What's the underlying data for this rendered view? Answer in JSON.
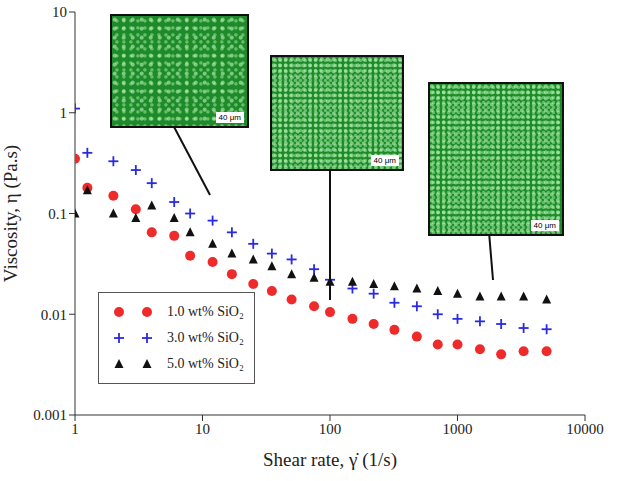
{
  "chart_data": {
    "type": "scatter",
    "x_label": "Shear rate, γ̇  (1/s)",
    "y_label": "Viscosity, η (Pa.s)",
    "log": true,
    "grid": false,
    "legend": "lower left",
    "xlim": [
      1,
      10000
    ],
    "xticks": [
      1,
      10,
      100,
      1000,
      10000
    ],
    "ylim": [
      0.001,
      10
    ],
    "yticks": [
      0.001,
      0.01,
      0.1,
      1,
      10
    ],
    "x": [
      1,
      1.25,
      2,
      3,
      4,
      6,
      8,
      12,
      17,
      25,
      35,
      50,
      75,
      100,
      150,
      220,
      320,
      480,
      700,
      1000,
      1500,
      2200,
      3300,
      5000
    ],
    "series": [
      {
        "name": "1.0 wt% SiO₂",
        "color": "#ee2a2a",
        "marker": "circle",
        "values": [
          0.35,
          0.18,
          0.15,
          0.11,
          0.065,
          0.06,
          0.038,
          0.033,
          0.025,
          0.02,
          0.017,
          0.014,
          0.012,
          0.0105,
          0.009,
          0.008,
          0.007,
          0.006,
          0.005,
          0.005,
          0.0045,
          0.004,
          0.0043,
          0.0043
        ]
      },
      {
        "name": "3.0 wt% SiO₂",
        "color": "#2a2ae0",
        "marker": "plus",
        "values": [
          1.1,
          0.4,
          0.33,
          0.27,
          0.2,
          0.13,
          0.1,
          0.085,
          0.065,
          0.05,
          0.04,
          0.035,
          0.028,
          0.022,
          0.018,
          0.016,
          0.013,
          0.012,
          0.01,
          0.009,
          0.0085,
          0.008,
          0.0073,
          0.0071
        ]
      },
      {
        "name": "5.0 wt% SiO₂",
        "color": "#111111",
        "marker": "triangle",
        "values": [
          0.1,
          0.17,
          0.1,
          0.09,
          0.12,
          0.09,
          0.065,
          0.05,
          0.04,
          0.035,
          0.03,
          0.025,
          0.023,
          0.021,
          0.021,
          0.02,
          0.019,
          0.018,
          0.017,
          0.016,
          0.015,
          0.015,
          0.015,
          0.014
        ]
      }
    ],
    "insets": [
      {
        "scale_label": "40 μm"
      },
      {
        "scale_label": "40 μm"
      },
      {
        "scale_label": "40 μm"
      }
    ]
  }
}
